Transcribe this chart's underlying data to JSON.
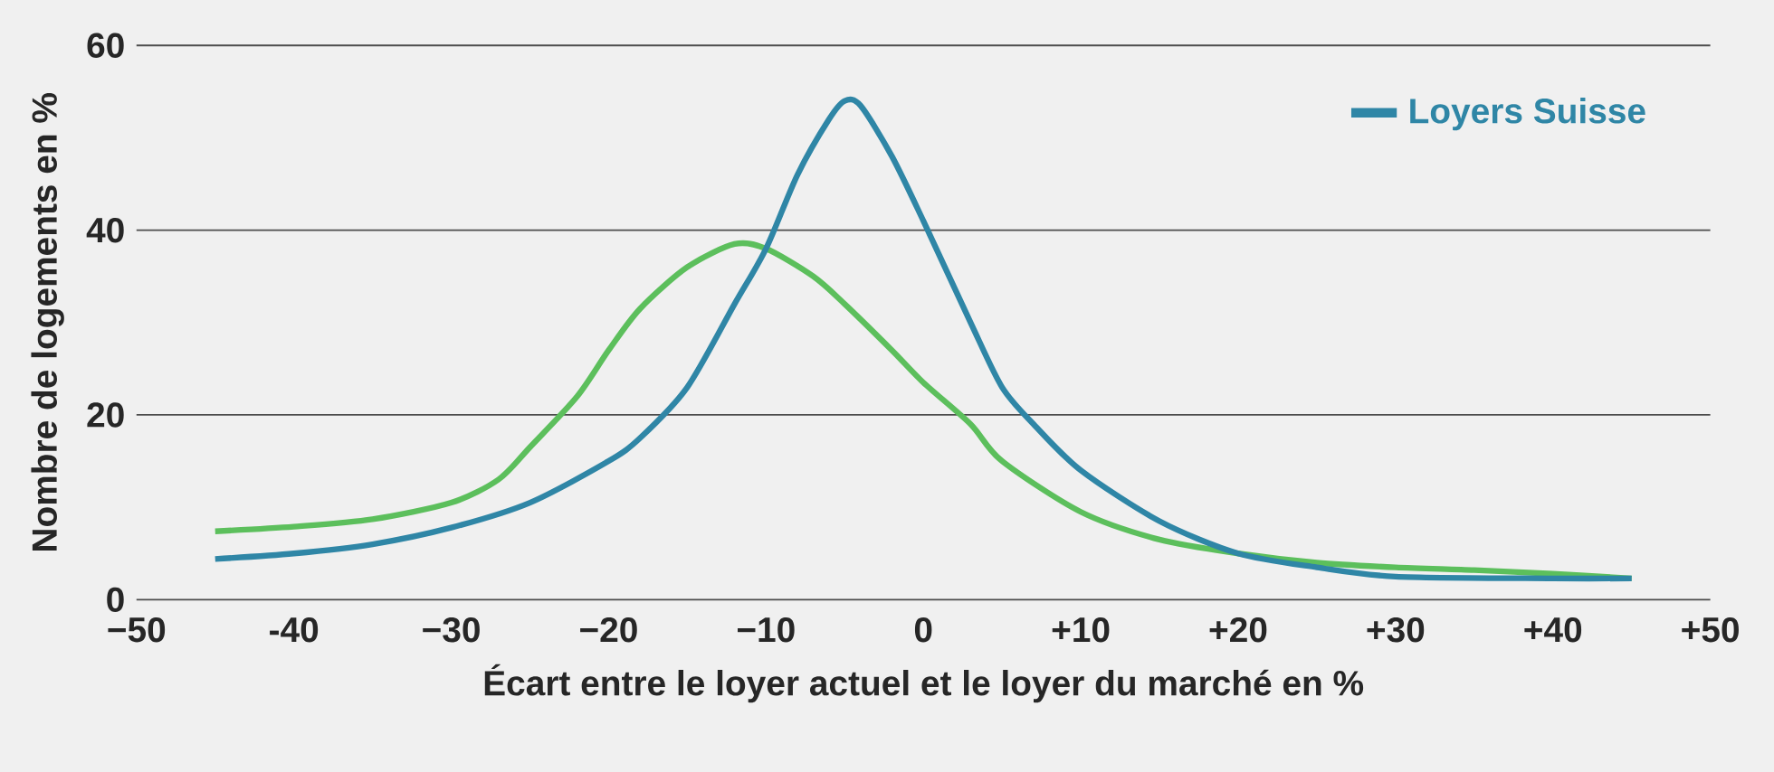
{
  "chart_data": {
    "type": "line",
    "xlabel": "Écart entre le loyer actuel et le loyer du marché en %",
    "ylabel": "Nombre de logements en %",
    "xlim": [
      -50,
      50
    ],
    "ylim": [
      0,
      60
    ],
    "xticks": [
      {
        "value": -50,
        "label": "−50"
      },
      {
        "value": -40,
        "label": "-40"
      },
      {
        "value": -30,
        "label": "−30"
      },
      {
        "value": -20,
        "label": "−20"
      },
      {
        "value": -10,
        "label": "−10"
      },
      0,
      {
        "value": 10,
        "label": "+10"
      },
      {
        "value": 20,
        "label": "+20"
      },
      {
        "value": 30,
        "label": "+30"
      },
      {
        "value": 40,
        "label": "+40"
      },
      {
        "value": 50,
        "label": "+50"
      }
    ],
    "yticks": [
      0,
      20,
      40,
      60
    ],
    "grid": "y",
    "legend": "top right",
    "marker": "none",
    "line_style": "solid",
    "series": [
      {
        "color": "#5cbf5c",
        "x": [
          -45,
          -40,
          -35,
          -30,
          -27,
          -25,
          -22,
          -20,
          -18,
          -15,
          -12,
          -10,
          -7,
          -5,
          -2,
          0,
          3,
          5,
          10,
          15,
          20,
          25,
          30,
          35,
          40,
          45
        ],
        "values": [
          7.4,
          7.9,
          8.7,
          10.5,
          13,
          16.5,
          22,
          27,
          31.5,
          36,
          38.5,
          38,
          35,
          32,
          27,
          23.5,
          19,
          15,
          9.5,
          6.5,
          5,
          4,
          3.5,
          3.2,
          2.8,
          2.3
        ]
      },
      {
        "name": "Loyers Suisse",
        "color": "#2f86a6",
        "x": [
          -45,
          -40,
          -35,
          -30,
          -25,
          -20,
          -18,
          -15,
          -12,
          -10,
          -8,
          -6,
          -5,
          -4,
          -2,
          0,
          3,
          5,
          7,
          10,
          15,
          20,
          25,
          30,
          40,
          45
        ],
        "values": [
          4.4,
          5,
          6,
          7.8,
          10.5,
          15,
          17.5,
          23,
          32,
          38,
          46,
          52,
          54,
          53.5,
          48,
          41,
          30,
          23,
          19,
          14,
          8.5,
          5,
          3.5,
          2.5,
          2.3,
          2.3
        ]
      }
    ]
  }
}
